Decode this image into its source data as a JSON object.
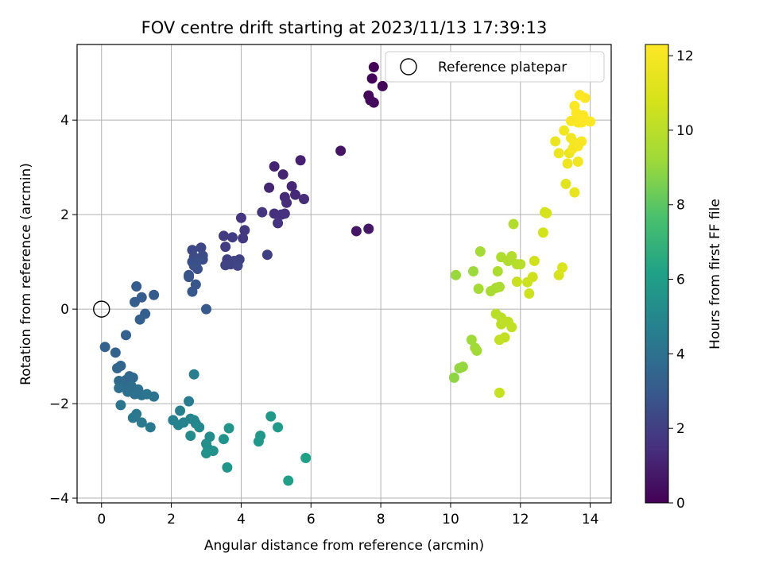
{
  "chart_data": {
    "type": "scatter",
    "title": "FOV centre drift starting at 2023/11/13 17:39:13",
    "xlabel": "Angular distance from reference (arcmin)",
    "ylabel": "Rotation from reference (arcmin)",
    "xlim": [
      -0.7,
      14.6
    ],
    "ylim": [
      -4.1,
      5.6
    ],
    "xticks": [
      0,
      2,
      4,
      6,
      8,
      10,
      12,
      14
    ],
    "yticks": [
      -4,
      -2,
      0,
      2,
      4
    ],
    "grid": true,
    "legend": {
      "position": "top-right",
      "entries": [
        "Reference platepar"
      ]
    },
    "reference_point": {
      "x": 0,
      "y": 0,
      "label": "Reference platepar"
    },
    "colorbar": {
      "label": "Hours from first FF file",
      "colormap": "viridis",
      "range": [
        0,
        12.3
      ],
      "ticks": [
        0,
        2,
        4,
        6,
        8,
        10,
        12
      ]
    },
    "series": [
      {
        "points": [
          [
            7.8,
            5.12,
            0.05
          ],
          [
            7.75,
            4.88,
            0.1
          ],
          [
            8.05,
            4.72,
            0.15
          ],
          [
            7.65,
            4.52,
            0.2
          ],
          [
            7.7,
            4.42,
            0.25
          ],
          [
            7.8,
            4.37,
            0.3
          ],
          [
            6.85,
            3.35,
            0.6
          ],
          [
            7.3,
            1.65,
            0.65
          ],
          [
            7.65,
            1.7,
            0.7
          ],
          [
            5.7,
            3.15,
            1.0
          ],
          [
            4.95,
            3.02,
            1.05
          ],
          [
            5.2,
            2.85,
            1.1
          ],
          [
            4.8,
            2.57,
            1.15
          ],
          [
            5.45,
            2.6,
            1.2
          ],
          [
            5.55,
            2.42,
            1.25
          ],
          [
            5.25,
            2.37,
            1.3
          ],
          [
            5.3,
            2.25,
            1.35
          ],
          [
            5.8,
            2.33,
            1.4
          ],
          [
            4.95,
            2.02,
            1.45
          ],
          [
            5.15,
            2.0,
            1.5
          ],
          [
            5.25,
            2.02,
            1.55
          ],
          [
            5.05,
            1.82,
            1.6
          ],
          [
            4.6,
            2.05,
            1.65
          ],
          [
            4.0,
            1.93,
            1.7
          ],
          [
            4.1,
            1.67,
            1.75
          ],
          [
            4.05,
            1.5,
            1.8
          ],
          [
            3.5,
            1.55,
            1.85
          ],
          [
            3.75,
            1.52,
            1.9
          ],
          [
            3.55,
            1.32,
            1.95
          ],
          [
            4.75,
            1.15,
            2.0
          ],
          [
            3.6,
            1.05,
            2.0
          ],
          [
            3.7,
            0.95,
            2.05
          ],
          [
            3.95,
            1.05,
            2.1
          ],
          [
            3.55,
            0.93,
            2.15
          ],
          [
            3.8,
            1.02,
            2.2
          ],
          [
            3.9,
            0.92,
            2.25
          ],
          [
            2.85,
            1.3,
            2.3
          ],
          [
            2.6,
            1.25,
            2.35
          ],
          [
            2.9,
            1.13,
            2.4
          ],
          [
            2.65,
            1.1,
            2.45
          ],
          [
            2.9,
            1.05,
            2.5
          ],
          [
            2.6,
            1.0,
            2.55
          ],
          [
            2.75,
            1.02,
            2.6
          ],
          [
            2.65,
            0.92,
            2.65
          ],
          [
            2.75,
            0.85,
            2.7
          ],
          [
            2.5,
            0.72,
            2.75
          ],
          [
            2.5,
            0.68,
            2.8
          ],
          [
            2.7,
            0.52,
            2.85
          ],
          [
            2.6,
            0.37,
            2.9
          ],
          [
            3.0,
            0.0,
            2.95
          ],
          [
            1.5,
            0.3,
            3.0
          ],
          [
            1.0,
            0.48,
            3.05
          ],
          [
            1.15,
            0.25,
            3.1
          ],
          [
            0.95,
            0.15,
            3.15
          ],
          [
            1.25,
            -0.1,
            3.2
          ],
          [
            1.1,
            -0.22,
            3.25
          ],
          [
            0.7,
            -0.55,
            3.3
          ],
          [
            0.1,
            -0.8,
            3.35
          ],
          [
            0.4,
            -0.92,
            3.4
          ],
          [
            0.55,
            -1.2,
            3.45
          ],
          [
            0.45,
            -1.25,
            3.5
          ],
          [
            0.8,
            -1.42,
            3.55
          ],
          [
            0.7,
            -1.5,
            3.6
          ],
          [
            0.9,
            -1.45,
            3.65
          ],
          [
            0.5,
            -1.52,
            3.7
          ],
          [
            0.6,
            -1.6,
            3.75
          ],
          [
            0.85,
            -1.62,
            3.8
          ],
          [
            0.5,
            -1.67,
            3.85
          ],
          [
            1.05,
            -1.7,
            3.9
          ],
          [
            0.75,
            -1.75,
            3.95
          ],
          [
            0.95,
            -1.8,
            4.0
          ],
          [
            1.15,
            -1.82,
            4.05
          ],
          [
            1.3,
            -1.8,
            4.1
          ],
          [
            1.5,
            -1.85,
            4.15
          ],
          [
            0.55,
            -2.03,
            4.2
          ],
          [
            1.0,
            -2.22,
            4.25
          ],
          [
            0.9,
            -2.3,
            4.3
          ],
          [
            1.15,
            -2.4,
            4.35
          ],
          [
            1.4,
            -2.5,
            4.4
          ],
          [
            2.5,
            -1.95,
            4.5
          ],
          [
            2.65,
            -1.38,
            4.55
          ],
          [
            2.25,
            -2.15,
            4.6
          ],
          [
            2.05,
            -2.35,
            4.7
          ],
          [
            2.2,
            -2.45,
            4.75
          ],
          [
            2.35,
            -2.4,
            4.8
          ],
          [
            2.55,
            -2.32,
            4.85
          ],
          [
            2.65,
            -2.35,
            4.9
          ],
          [
            2.7,
            -2.42,
            4.95
          ],
          [
            2.8,
            -2.5,
            5.0
          ],
          [
            2.55,
            -2.68,
            5.1
          ],
          [
            3.1,
            -2.7,
            5.2
          ],
          [
            3.0,
            -2.85,
            5.3
          ],
          [
            3.05,
            -2.95,
            5.35
          ],
          [
            3.2,
            -3.0,
            5.4
          ],
          [
            3.0,
            -3.05,
            5.45
          ],
          [
            3.5,
            -2.75,
            5.5
          ],
          [
            3.65,
            -2.52,
            5.55
          ],
          [
            3.6,
            -3.35,
            5.6
          ],
          [
            4.55,
            -2.68,
            5.7
          ],
          [
            4.5,
            -2.8,
            5.75
          ],
          [
            4.85,
            -2.27,
            5.8
          ],
          [
            5.05,
            -2.5,
            5.9
          ],
          [
            5.35,
            -3.63,
            6.0
          ],
          [
            5.85,
            -3.15,
            6.1
          ],
          [
            10.1,
            -1.45,
            8.9
          ],
          [
            10.25,
            -1.25,
            9.0
          ],
          [
            10.35,
            -1.22,
            9.05
          ],
          [
            10.15,
            0.72,
            9.1
          ],
          [
            10.65,
            0.8,
            9.15
          ],
          [
            10.6,
            -0.65,
            9.2
          ],
          [
            10.7,
            -0.82,
            9.25
          ],
          [
            10.75,
            -0.88,
            9.3
          ],
          [
            10.85,
            1.22,
            9.35
          ],
          [
            10.8,
            0.43,
            9.4
          ],
          [
            11.15,
            0.38,
            9.45
          ],
          [
            11.3,
            0.45,
            9.5
          ],
          [
            11.4,
            0.47,
            9.55
          ],
          [
            11.35,
            0.8,
            9.6
          ],
          [
            11.45,
            1.1,
            9.65
          ],
          [
            11.65,
            1.02,
            9.7
          ],
          [
            11.75,
            1.12,
            9.75
          ],
          [
            11.8,
            1.8,
            9.8
          ],
          [
            11.9,
            0.95,
            9.85
          ],
          [
            12.0,
            0.95,
            9.9
          ],
          [
            11.3,
            -0.1,
            9.95
          ],
          [
            11.45,
            -0.18,
            10.0
          ],
          [
            11.45,
            -0.32,
            10.05
          ],
          [
            11.55,
            -0.27,
            10.1
          ],
          [
            11.65,
            -0.27,
            10.15
          ],
          [
            11.75,
            -0.38,
            10.2
          ],
          [
            11.55,
            -0.6,
            10.25
          ],
          [
            11.4,
            -0.65,
            10.3
          ],
          [
            11.4,
            -1.77,
            10.35
          ],
          [
            11.9,
            0.58,
            10.4
          ],
          [
            12.2,
            0.57,
            10.5
          ],
          [
            12.25,
            0.33,
            10.55
          ],
          [
            12.35,
            0.68,
            10.6
          ],
          [
            12.4,
            1.02,
            10.65
          ],
          [
            12.65,
            1.62,
            10.7
          ],
          [
            12.7,
            2.05,
            10.8
          ],
          [
            12.75,
            2.03,
            10.85
          ],
          [
            13.1,
            0.72,
            10.9
          ],
          [
            13.2,
            0.88,
            11.0
          ],
          [
            13.3,
            2.65,
            11.2
          ],
          [
            13.55,
            2.47,
            11.5
          ],
          [
            13.0,
            3.55,
            11.6
          ],
          [
            13.1,
            3.3,
            11.65
          ],
          [
            13.4,
            3.3,
            11.7
          ],
          [
            13.35,
            3.08,
            11.75
          ],
          [
            13.65,
            3.12,
            11.8
          ],
          [
            13.25,
            3.78,
            11.85
          ],
          [
            13.45,
            3.62,
            11.9
          ],
          [
            13.55,
            3.52,
            11.95
          ],
          [
            13.5,
            3.4,
            12.0
          ],
          [
            13.65,
            3.45,
            12.05
          ],
          [
            13.75,
            3.55,
            12.1
          ],
          [
            13.45,
            3.98,
            12.1
          ],
          [
            13.65,
            3.95,
            12.15
          ],
          [
            13.85,
            4.0,
            12.2
          ],
          [
            14.0,
            3.97,
            12.25
          ],
          [
            13.55,
            4.3,
            12.25
          ],
          [
            13.6,
            4.15,
            12.3
          ],
          [
            13.8,
            4.1,
            12.3
          ],
          [
            13.7,
            4.53,
            12.3
          ],
          [
            13.85,
            4.47,
            12.3
          ],
          [
            13.75,
            3.95,
            12.3
          ]
        ]
      }
    ]
  }
}
